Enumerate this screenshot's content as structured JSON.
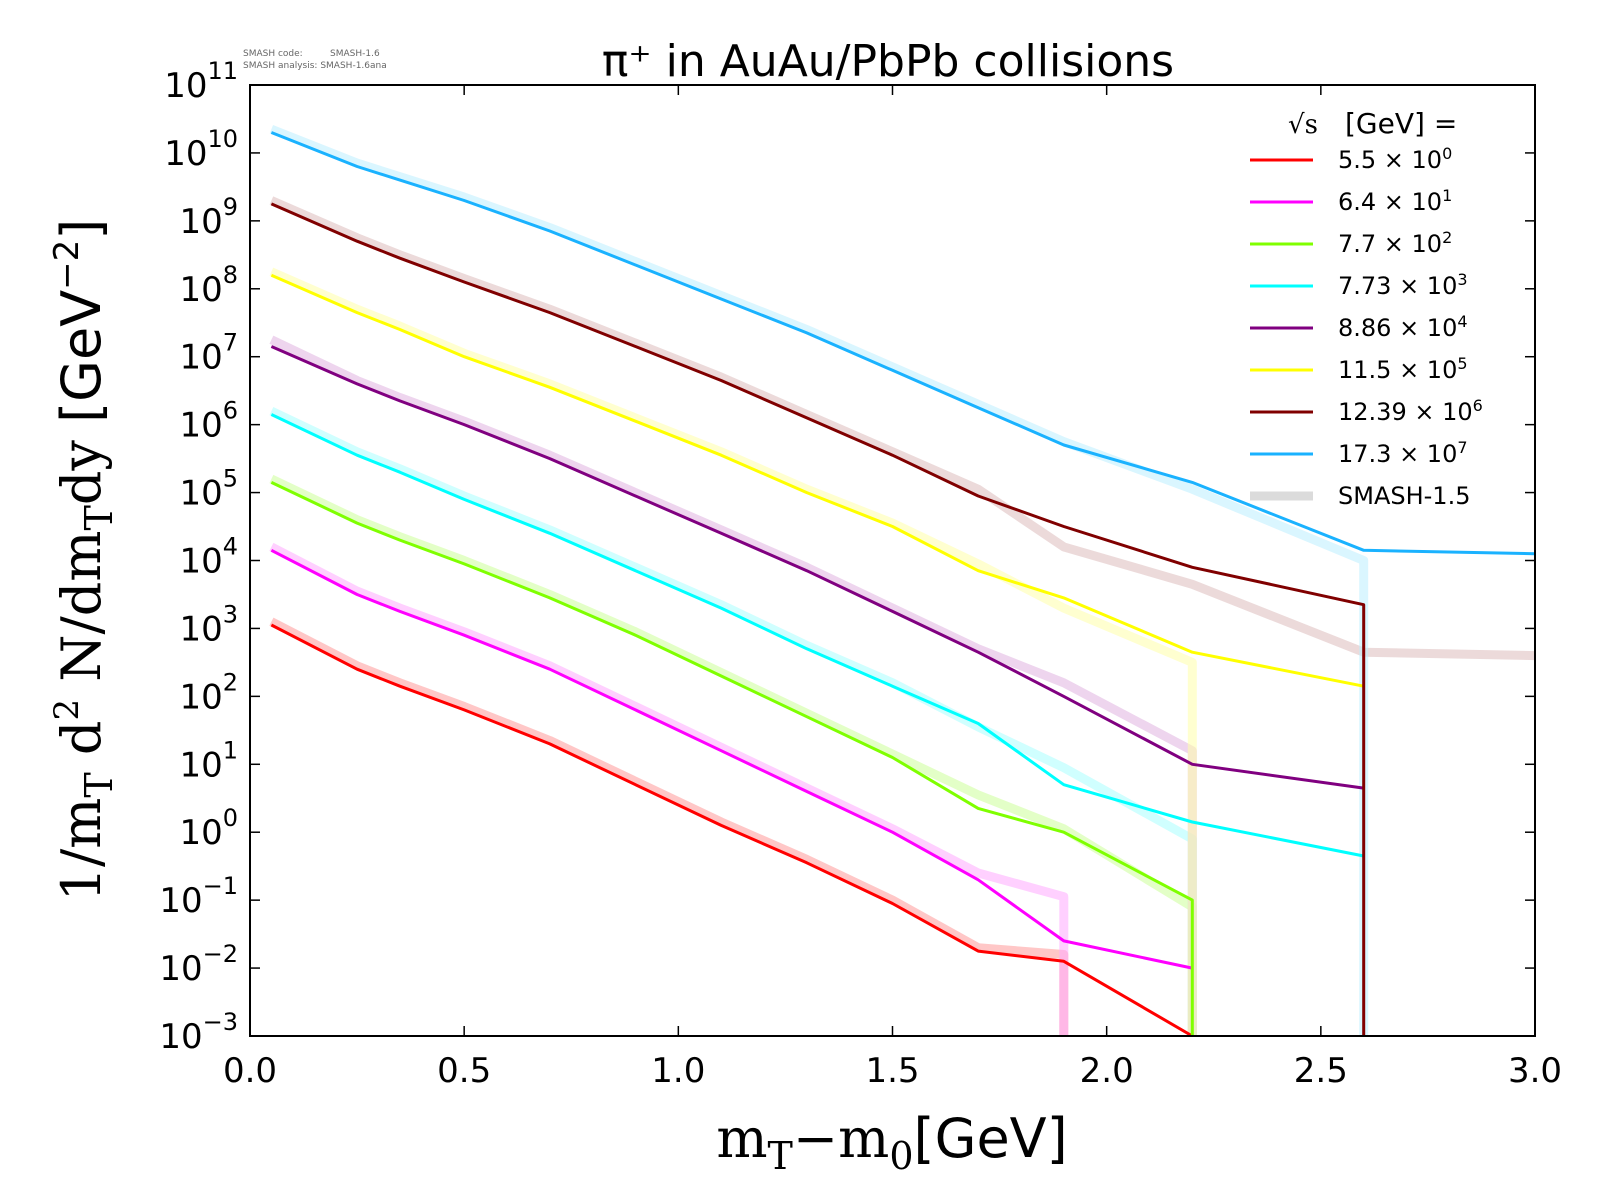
{
  "chart_data": {
    "type": "line",
    "title": "π⁺ in AuAu/PbPb collisions",
    "xlabel_main": "m",
    "xlabel_sub1": "T",
    "xlabel_mid": "−m",
    "xlabel_sub2": "0",
    "xlabel_unit": "[GeV]",
    "ylabel_main": "1/m",
    "ylabel_sub1": "T",
    "ylabel_d": " d",
    "ylabel_sup": "2",
    "ylabel_n": " N/dm",
    "ylabel_sub2": "T",
    "ylabel_dy": "dy ",
    "ylabel_unit": "[GeV",
    "ylabel_unit_sup": "−2",
    "ylabel_unit_close": "]",
    "watermark": {
      "code_label": "SMASH code:",
      "code_value": "SMASH-1.6",
      "analysis_label": "SMASH analysis:",
      "analysis_value": "SMASH-1.6ana"
    },
    "xlim": [
      0.0,
      3.0
    ],
    "ylim_exp": [
      -3,
      11
    ],
    "yscale": "log",
    "x_ticks": [
      "0.0",
      "0.5",
      "1.0",
      "1.5",
      "2.0",
      "2.5",
      "3.0"
    ],
    "x_tick_values": [
      0.0,
      0.5,
      1.0,
      1.5,
      2.0,
      2.5,
      3.0
    ],
    "y_tick_exponents": [
      -3,
      -2,
      -1,
      0,
      1,
      2,
      3,
      4,
      5,
      6,
      7,
      8,
      9,
      10,
      11
    ],
    "y_tick_exponent_labels": [
      "−3",
      "−2",
      "−1",
      "0",
      "1",
      "2",
      "3",
      "4",
      "5",
      "6",
      "7",
      "8",
      "9",
      "10",
      "11"
    ],
    "y_tick_base": "10",
    "legend_title_sqrt": "√s",
    "legend_title_rest": "[GeV] =",
    "legend_placement": "top-right",
    "series": [
      {
        "name": "5.5",
        "multiplier_exp": "0",
        "color": "#ff0000",
        "x": [
          0.05,
          0.25,
          0.35,
          0.5,
          0.7,
          0.9,
          1.1,
          1.3,
          1.5,
          1.7,
          1.9,
          2.2
        ],
        "log10y": [
          3.05,
          2.4,
          2.15,
          1.8,
          1.3,
          0.7,
          0.1,
          -0.45,
          -1.05,
          -1.75,
          -1.9,
          -3.0
        ]
      },
      {
        "name": "6.4",
        "multiplier_exp": "1",
        "color": "#ff00ff",
        "x": [
          0.05,
          0.25,
          0.35,
          0.5,
          0.7,
          0.9,
          1.1,
          1.3,
          1.5,
          1.7,
          1.9,
          2.2
        ],
        "log10y": [
          4.15,
          3.5,
          3.25,
          2.9,
          2.4,
          1.8,
          1.2,
          0.6,
          0.0,
          -0.7,
          -1.6,
          -2.0
        ]
      },
      {
        "name": "7.7",
        "multiplier_exp": "2",
        "color": "#7fff00",
        "x": [
          0.05,
          0.25,
          0.35,
          0.5,
          0.7,
          0.9,
          1.1,
          1.3,
          1.5,
          1.7,
          1.9,
          2.2,
          2.2
        ],
        "log10y": [
          5.15,
          4.55,
          4.3,
          3.95,
          3.45,
          2.9,
          2.3,
          1.7,
          1.1,
          0.35,
          0.0,
          -1.0,
          -3.0
        ]
      },
      {
        "name": "7.73",
        "multiplier_exp": "3",
        "color": "#00ffff",
        "x": [
          0.05,
          0.25,
          0.35,
          0.5,
          0.7,
          0.9,
          1.1,
          1.3,
          1.5,
          1.7,
          1.9,
          2.2,
          2.6
        ],
        "log10y": [
          6.15,
          5.55,
          5.3,
          4.9,
          4.4,
          3.85,
          3.3,
          2.7,
          2.15,
          1.6,
          0.7,
          0.15,
          -0.35
        ]
      },
      {
        "name": "8.86",
        "multiplier_exp": "4",
        "color": "#800080",
        "x": [
          0.05,
          0.25,
          0.35,
          0.5,
          0.7,
          0.9,
          1.1,
          1.3,
          1.5,
          1.7,
          1.9,
          2.2,
          2.6
        ],
        "log10y": [
          7.15,
          6.6,
          6.35,
          6.0,
          5.5,
          4.95,
          4.4,
          3.85,
          3.25,
          2.65,
          2.0,
          1.0,
          0.65
        ]
      },
      {
        "name": "11.5",
        "multiplier_exp": "5",
        "color": "#ffff00",
        "x": [
          0.05,
          0.25,
          0.35,
          0.5,
          0.7,
          0.9,
          1.1,
          1.3,
          1.5,
          1.7,
          1.9,
          2.2,
          2.6
        ],
        "log10y": [
          8.2,
          7.65,
          7.4,
          7.0,
          6.55,
          6.05,
          5.55,
          5.0,
          4.5,
          3.85,
          3.45,
          2.65,
          2.15
        ]
      },
      {
        "name": "12.39",
        "multiplier_exp": "6",
        "color": "#800000",
        "x": [
          0.05,
          0.25,
          0.35,
          0.5,
          0.7,
          0.9,
          1.1,
          1.3,
          1.5,
          1.7,
          1.9,
          2.2,
          2.6,
          2.6
        ],
        "log10y": [
          9.25,
          8.7,
          8.45,
          8.1,
          7.65,
          7.15,
          6.65,
          6.1,
          5.55,
          4.95,
          4.5,
          3.9,
          3.35,
          -3.0
        ]
      },
      {
        "name": "17.3",
        "multiplier_exp": "7",
        "color": "#1ab2ff",
        "x": [
          0.05,
          0.25,
          0.35,
          0.5,
          0.7,
          0.9,
          1.1,
          1.3,
          1.5,
          1.7,
          1.9,
          2.2,
          2.6,
          3.0
        ],
        "log10y": [
          10.3,
          9.8,
          9.6,
          9.3,
          8.85,
          8.35,
          7.85,
          7.35,
          6.8,
          6.25,
          5.7,
          5.15,
          4.15,
          4.1
        ]
      }
    ],
    "reference_label": "SMASH-1.5",
    "reference_series": [
      {
        "color": "#ff9999",
        "x": [
          0.05,
          0.25,
          0.35,
          0.5,
          0.7,
          0.9,
          1.1,
          1.3,
          1.5,
          1.7,
          1.9,
          1.9
        ],
        "log10y": [
          3.1,
          2.45,
          2.2,
          1.85,
          1.35,
          0.75,
          0.15,
          -0.4,
          -1.0,
          -1.7,
          -1.8,
          -3.0
        ]
      },
      {
        "color": "#ffaaff",
        "x": [
          0.05,
          0.25,
          0.35,
          0.5,
          0.7,
          0.9,
          1.1,
          1.3,
          1.5,
          1.7,
          1.9,
          1.9
        ],
        "log10y": [
          4.2,
          3.55,
          3.3,
          2.95,
          2.45,
          1.85,
          1.25,
          0.65,
          0.05,
          -0.6,
          -0.95,
          -3.0
        ]
      },
      {
        "color": "#ccff99",
        "x": [
          0.05,
          0.25,
          0.35,
          0.5,
          0.7,
          0.9,
          1.1,
          1.3,
          1.5,
          1.7,
          1.9,
          2.2,
          2.2
        ],
        "log10y": [
          5.2,
          4.6,
          4.35,
          4.0,
          3.5,
          2.95,
          2.35,
          1.75,
          1.15,
          0.55,
          0.05,
          -1.1,
          -3.0
        ]
      },
      {
        "color": "#aaffff",
        "x": [
          0.05,
          0.25,
          0.35,
          0.5,
          0.7,
          0.9,
          1.1,
          1.3,
          1.5,
          1.7,
          1.9,
          2.2,
          2.2
        ],
        "log10y": [
          6.2,
          5.6,
          5.35,
          4.95,
          4.45,
          3.9,
          3.35,
          2.75,
          2.2,
          1.55,
          0.95,
          -0.1,
          -3.0
        ]
      },
      {
        "color": "#e0b3e0",
        "x": [
          0.05,
          0.25,
          0.35,
          0.5,
          0.7,
          0.9,
          1.1,
          1.3,
          1.5,
          1.7,
          1.9,
          2.2,
          2.2
        ],
        "log10y": [
          7.25,
          6.65,
          6.4,
          6.05,
          5.55,
          5.0,
          4.45,
          3.9,
          3.3,
          2.7,
          2.2,
          1.2,
          -3.0
        ]
      },
      {
        "color": "#ffffaa",
        "x": [
          0.05,
          0.25,
          0.35,
          0.5,
          0.7,
          0.9,
          1.1,
          1.3,
          1.5,
          1.7,
          1.9,
          2.2,
          2.2
        ],
        "log10y": [
          8.25,
          7.7,
          7.45,
          7.05,
          6.6,
          6.1,
          5.6,
          5.05,
          4.55,
          3.95,
          3.3,
          2.5,
          -3.0
        ]
      },
      {
        "color": "#ddbbbb",
        "x": [
          0.05,
          0.25,
          0.35,
          0.5,
          0.7,
          0.9,
          1.1,
          1.3,
          1.5,
          1.7,
          1.9,
          2.2,
          2.6,
          3.0
        ],
        "log10y": [
          9.3,
          8.75,
          8.5,
          8.15,
          7.7,
          7.2,
          6.7,
          6.15,
          5.6,
          5.05,
          4.2,
          3.65,
          2.65,
          2.6
        ]
      },
      {
        "color": "#bbeeff",
        "x": [
          0.05,
          0.25,
          0.35,
          0.5,
          0.7,
          0.9,
          1.1,
          1.3,
          1.5,
          1.7,
          1.9,
          2.2,
          2.6,
          2.6
        ],
        "log10y": [
          10.35,
          9.85,
          9.65,
          9.35,
          8.9,
          8.4,
          7.9,
          7.4,
          6.85,
          6.3,
          5.75,
          5.05,
          4.0,
          -3.0
        ]
      }
    ]
  }
}
